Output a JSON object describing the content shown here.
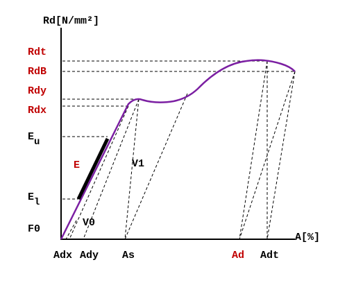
{
  "axes": {
    "y_title": "Rd[N/mm²]",
    "x_title": "A[%]"
  },
  "y_labels": {
    "rdt": "Rdt",
    "rdb": "RdB",
    "rdy": "Rdy",
    "rdx": "Rdx",
    "eu": {
      "label": "E",
      "subscript": "u"
    },
    "el": {
      "label": "E",
      "subscript": "l"
    },
    "f0": "F0"
  },
  "x_labels": {
    "adx": "Adx",
    "ady": "Ady",
    "as": "As",
    "ad": "Ad",
    "adt": "Adt"
  },
  "annotations": {
    "e": "E",
    "v1": "V1",
    "v0": "V0"
  }
}
